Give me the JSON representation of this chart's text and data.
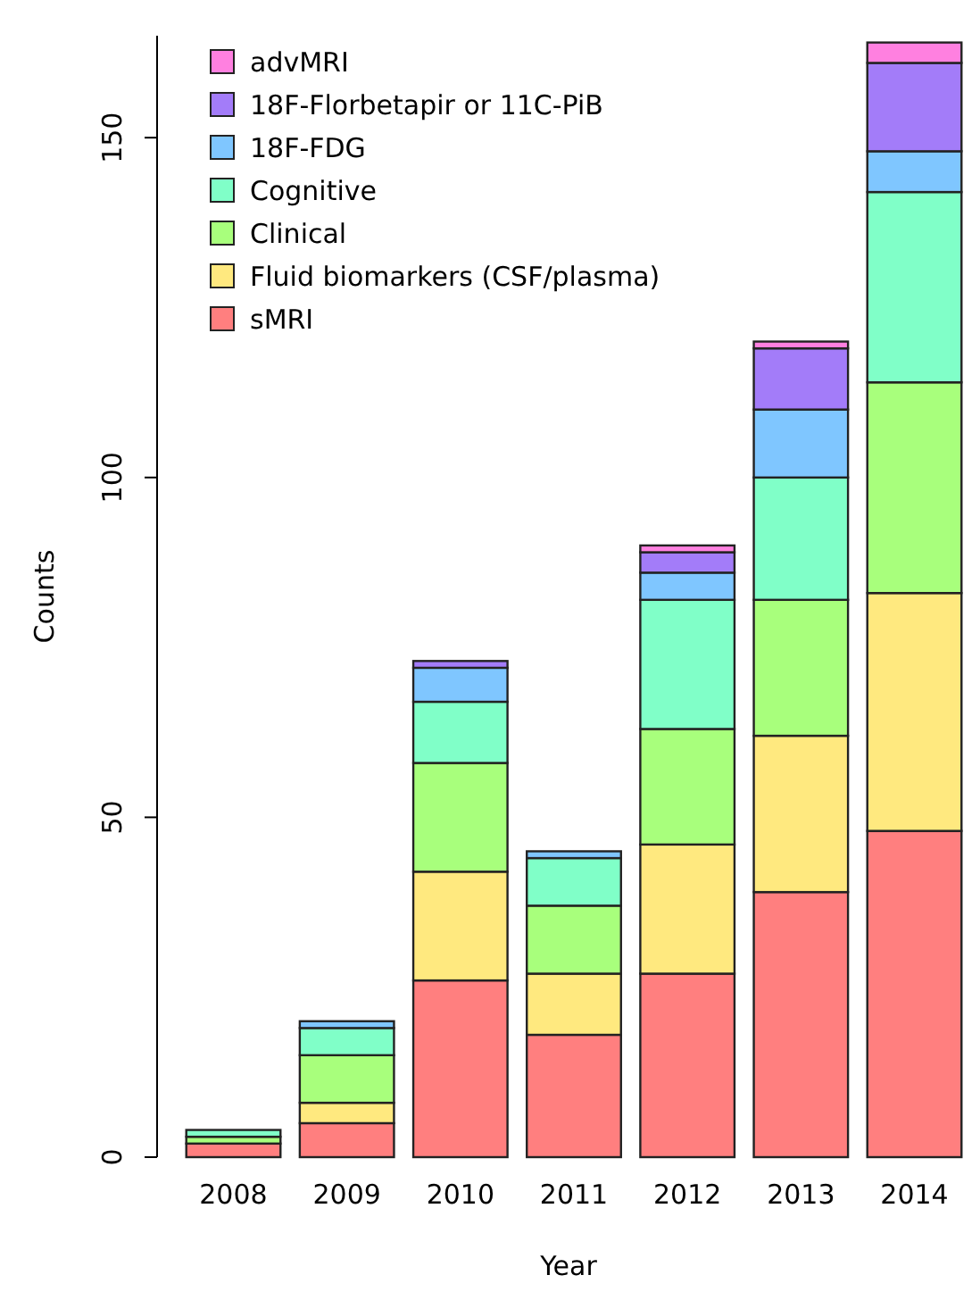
{
  "chart_data": {
    "type": "bar",
    "xlabel": "Year",
    "ylabel": "Counts",
    "categories": [
      "2008",
      "2009",
      "2010",
      "2011",
      "2012",
      "2013",
      "2014"
    ],
    "stacked": true,
    "ylim": [
      0,
      165
    ],
    "yticks": [
      0,
      50,
      100,
      150
    ],
    "grid": false,
    "legend": "top left",
    "series": [
      {
        "name": "sMRI",
        "color": "#ff7f7f",
        "values": [
          2,
          5,
          26,
          18,
          27,
          39,
          48
        ]
      },
      {
        "name": "Fluid biomarkers (CSF/plasma)",
        "color": "#ffe97f",
        "values": [
          0,
          3,
          16,
          9,
          19,
          23,
          35
        ]
      },
      {
        "name": "Clinical",
        "color": "#a8ff7c",
        "values": [
          1,
          7,
          16,
          10,
          17,
          20,
          31
        ]
      },
      {
        "name": "Cognitive",
        "color": "#80ffc8",
        "values": [
          1,
          4,
          9,
          7,
          19,
          18,
          28
        ]
      },
      {
        "name": "18F-FDG",
        "color": "#7fc6ff",
        "values": [
          0,
          1,
          5,
          1,
          4,
          10,
          6
        ]
      },
      {
        "name": "18F-Florbetapir or 11C-PiB",
        "color": "#a37cf9",
        "values": [
          0,
          0,
          1,
          0,
          3,
          9,
          13
        ]
      },
      {
        "name": "advMRI",
        "color": "#ff80e0",
        "values": [
          0,
          0,
          0,
          0,
          1,
          1,
          3
        ]
      }
    ]
  }
}
